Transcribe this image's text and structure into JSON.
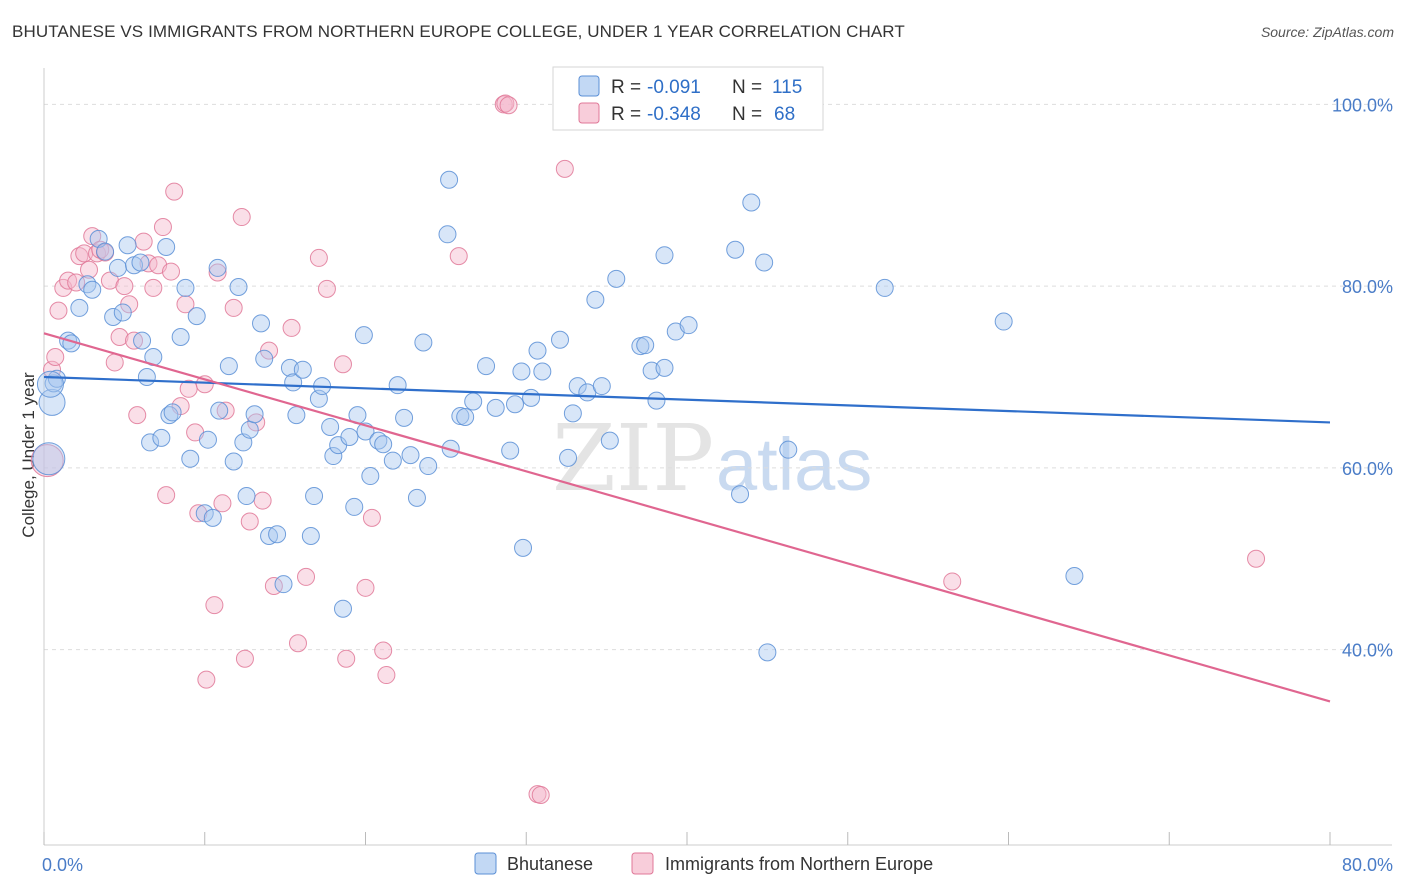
{
  "title": "BHUTANESE VS IMMIGRANTS FROM NORTHERN EUROPE COLLEGE, UNDER 1 YEAR CORRELATION CHART",
  "source": "Source: ZipAtlas.com",
  "watermark": {
    "zip": "ZIP",
    "atlas": "atlas"
  },
  "legend_top": [
    {
      "r_label": "R =",
      "r_value": "-0.091",
      "n_label": "N =",
      "n_value": "115"
    },
    {
      "r_label": "R =",
      "r_value": "-0.348",
      "n_label": "N =",
      "n_value": "68"
    }
  ],
  "legend_bottom": [
    "Bhutanese",
    "Immigrants from Northern Europe"
  ],
  "colors": {
    "blue_fill": "#a8c8ef",
    "blue_stroke": "#5b8fd6",
    "blue_line": "#2f6fcb",
    "pink_fill": "#f5b8cb",
    "pink_stroke": "#e07898",
    "pink_line": "#e06690",
    "tick_label": "#4a7cc7",
    "grid": "#dddddd"
  },
  "chart_data": {
    "type": "scatter",
    "xlabel": "",
    "ylabel": "College, Under 1 year",
    "xlim": [
      0,
      80
    ],
    "ylim": [
      18.5,
      104
    ],
    "x_tick_labels": [
      {
        "value": 0,
        "label": "0.0%"
      },
      {
        "value": 80,
        "label": "80.0%"
      }
    ],
    "y_tick_labels": [
      {
        "value": 40,
        "label": "40.0%"
      },
      {
        "value": 60,
        "label": "60.0%"
      },
      {
        "value": 80,
        "label": "80.0%"
      },
      {
        "value": 100,
        "label": "100.0%"
      }
    ],
    "series": [
      {
        "name": "Bhutanese",
        "r": -0.091,
        "n": 115,
        "trend": [
          [
            0,
            70.0
          ],
          [
            80,
            65.0
          ]
        ],
        "points": [
          [
            0.3,
            61.0
          ],
          [
            0.5,
            67.2
          ],
          [
            0.6,
            69.3
          ],
          [
            0.8,
            69.8
          ],
          [
            1.5,
            74.0
          ],
          [
            1.7,
            73.7
          ],
          [
            2.2,
            77.6
          ],
          [
            2.7,
            80.2
          ],
          [
            3.0,
            79.6
          ],
          [
            3.4,
            85.2
          ],
          [
            3.8,
            83.8
          ],
          [
            4.3,
            76.6
          ],
          [
            4.6,
            82.0
          ],
          [
            4.9,
            77.1
          ],
          [
            5.2,
            84.5
          ],
          [
            5.6,
            82.3
          ],
          [
            6.0,
            82.6
          ],
          [
            6.1,
            74.0
          ],
          [
            6.4,
            70.0
          ],
          [
            6.6,
            62.8
          ],
          [
            6.8,
            72.2
          ],
          [
            7.3,
            63.3
          ],
          [
            7.6,
            84.3
          ],
          [
            7.8,
            65.8
          ],
          [
            8.0,
            66.1
          ],
          [
            8.5,
            74.4
          ],
          [
            8.8,
            79.8
          ],
          [
            9.1,
            61.0
          ],
          [
            9.5,
            76.7
          ],
          [
            10.0,
            55.0
          ],
          [
            10.2,
            63.1
          ],
          [
            10.5,
            54.5
          ],
          [
            10.8,
            82.0
          ],
          [
            10.9,
            66.3
          ],
          [
            11.5,
            71.2
          ],
          [
            11.8,
            60.7
          ],
          [
            12.1,
            79.9
          ],
          [
            12.4,
            62.8
          ],
          [
            12.6,
            56.9
          ],
          [
            12.8,
            64.2
          ],
          [
            13.1,
            65.9
          ],
          [
            13.5,
            75.9
          ],
          [
            13.7,
            72.0
          ],
          [
            14.0,
            52.5
          ],
          [
            14.5,
            52.7
          ],
          [
            14.9,
            47.2
          ],
          [
            15.3,
            71.0
          ],
          [
            15.5,
            69.4
          ],
          [
            15.7,
            65.8
          ],
          [
            16.1,
            70.8
          ],
          [
            16.6,
            52.5
          ],
          [
            16.8,
            56.9
          ],
          [
            17.1,
            67.6
          ],
          [
            17.3,
            69.0
          ],
          [
            17.8,
            64.5
          ],
          [
            18.0,
            61.3
          ],
          [
            18.3,
            62.5
          ],
          [
            18.6,
            44.5
          ],
          [
            19.0,
            63.4
          ],
          [
            19.3,
            55.7
          ],
          [
            19.5,
            65.8
          ],
          [
            19.9,
            74.6
          ],
          [
            20.0,
            64.0
          ],
          [
            20.3,
            59.1
          ],
          [
            20.8,
            63.0
          ],
          [
            21.1,
            62.6
          ],
          [
            21.7,
            60.8
          ],
          [
            22.0,
            69.1
          ],
          [
            22.4,
            65.5
          ],
          [
            22.8,
            61.4
          ],
          [
            23.2,
            56.7
          ],
          [
            23.6,
            73.8
          ],
          [
            23.9,
            60.2
          ],
          [
            25.1,
            85.7
          ],
          [
            25.2,
            91.7
          ],
          [
            25.3,
            62.1
          ],
          [
            25.9,
            65.7
          ],
          [
            26.2,
            65.6
          ],
          [
            26.7,
            67.3
          ],
          [
            27.5,
            71.2
          ],
          [
            28.1,
            66.6
          ],
          [
            29.0,
            61.9
          ],
          [
            29.3,
            67.0
          ],
          [
            29.7,
            70.6
          ],
          [
            29.8,
            51.2
          ],
          [
            30.3,
            67.7
          ],
          [
            30.7,
            72.9
          ],
          [
            31.0,
            70.6
          ],
          [
            32.1,
            74.1
          ],
          [
            32.6,
            61.1
          ],
          [
            32.9,
            66.0
          ],
          [
            33.2,
            69.0
          ],
          [
            33.8,
            68.3
          ],
          [
            34.3,
            78.5
          ],
          [
            34.7,
            69.0
          ],
          [
            35.2,
            63.0
          ],
          [
            35.6,
            80.8
          ],
          [
            37.1,
            73.4
          ],
          [
            37.4,
            73.5
          ],
          [
            37.8,
            70.7
          ],
          [
            38.1,
            67.4
          ],
          [
            38.6,
            71.0
          ],
          [
            38.6,
            83.4
          ],
          [
            39.3,
            75.0
          ],
          [
            40.1,
            75.7
          ],
          [
            43.0,
            84.0
          ],
          [
            43.3,
            57.1
          ],
          [
            44.0,
            89.2
          ],
          [
            44.8,
            82.6
          ],
          [
            45.0,
            39.7
          ],
          [
            46.3,
            62.0
          ],
          [
            52.3,
            79.8
          ],
          [
            59.7,
            76.1
          ],
          [
            64.1,
            48.1
          ],
          [
            0.4,
            69.2
          ]
        ]
      },
      {
        "name": "Immigrants from Northern Europe",
        "r": -0.348,
        "n": 68,
        "trend": [
          [
            0,
            74.8
          ],
          [
            80,
            34.3
          ]
        ],
        "points": [
          [
            0.2,
            60.8
          ],
          [
            0.5,
            70.8
          ],
          [
            0.7,
            72.2
          ],
          [
            0.9,
            77.3
          ],
          [
            1.2,
            79.8
          ],
          [
            1.5,
            80.6
          ],
          [
            2.0,
            80.4
          ],
          [
            2.2,
            83.3
          ],
          [
            2.5,
            83.6
          ],
          [
            2.8,
            81.8
          ],
          [
            3.0,
            85.5
          ],
          [
            3.3,
            83.6
          ],
          [
            3.5,
            84.0
          ],
          [
            3.8,
            83.7
          ],
          [
            4.1,
            80.6
          ],
          [
            4.4,
            71.6
          ],
          [
            4.7,
            74.4
          ],
          [
            5.0,
            80.0
          ],
          [
            5.3,
            78.0
          ],
          [
            5.6,
            74.0
          ],
          [
            5.8,
            65.8
          ],
          [
            6.2,
            84.9
          ],
          [
            6.5,
            82.5
          ],
          [
            6.8,
            79.8
          ],
          [
            7.1,
            82.3
          ],
          [
            7.4,
            86.5
          ],
          [
            7.6,
            57.0
          ],
          [
            7.9,
            81.6
          ],
          [
            8.1,
            90.4
          ],
          [
            8.5,
            66.8
          ],
          [
            8.8,
            78.0
          ],
          [
            9.0,
            68.7
          ],
          [
            9.4,
            63.9
          ],
          [
            9.6,
            55.0
          ],
          [
            10.0,
            69.2
          ],
          [
            10.1,
            36.7
          ],
          [
            10.6,
            44.9
          ],
          [
            10.8,
            81.5
          ],
          [
            11.1,
            56.1
          ],
          [
            11.3,
            66.3
          ],
          [
            11.8,
            77.6
          ],
          [
            12.3,
            87.6
          ],
          [
            12.5,
            39.0
          ],
          [
            12.8,
            54.1
          ],
          [
            13.2,
            65.0
          ],
          [
            13.6,
            56.4
          ],
          [
            14.0,
            72.9
          ],
          [
            14.3,
            47.0
          ],
          [
            15.4,
            75.4
          ],
          [
            15.8,
            40.7
          ],
          [
            16.3,
            48.0
          ],
          [
            17.1,
            83.1
          ],
          [
            17.6,
            79.7
          ],
          [
            18.6,
            71.4
          ],
          [
            18.8,
            39.0
          ],
          [
            20.0,
            46.8
          ],
          [
            20.4,
            54.5
          ],
          [
            21.1,
            39.9
          ],
          [
            21.3,
            37.2
          ],
          [
            25.8,
            83.3
          ],
          [
            28.6,
            100.0
          ],
          [
            28.7,
            100.1
          ],
          [
            28.9,
            99.9
          ],
          [
            30.7,
            24.1
          ],
          [
            30.9,
            24.0
          ],
          [
            32.4,
            92.9
          ],
          [
            56.5,
            47.5
          ],
          [
            75.4,
            50.0
          ]
        ]
      }
    ]
  }
}
